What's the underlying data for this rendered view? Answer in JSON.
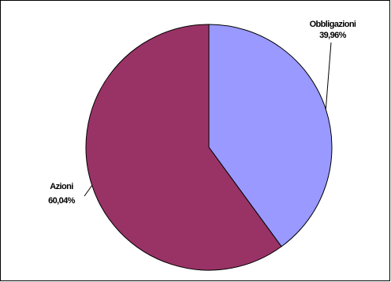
{
  "chart_data": {
    "type": "pie",
    "title": "",
    "slices": [
      {
        "label": "Obbligazioni",
        "value": 39.96,
        "value_text": "39,96%",
        "color": "#9999FF"
      },
      {
        "label": "Azioni",
        "value": 60.04,
        "value_text": "60,04%",
        "color": "#993366"
      }
    ],
    "start_angle_deg": 0,
    "direction": "clockwise",
    "legend": "none",
    "edge_color": "#000000",
    "frame_color": "#000000"
  }
}
